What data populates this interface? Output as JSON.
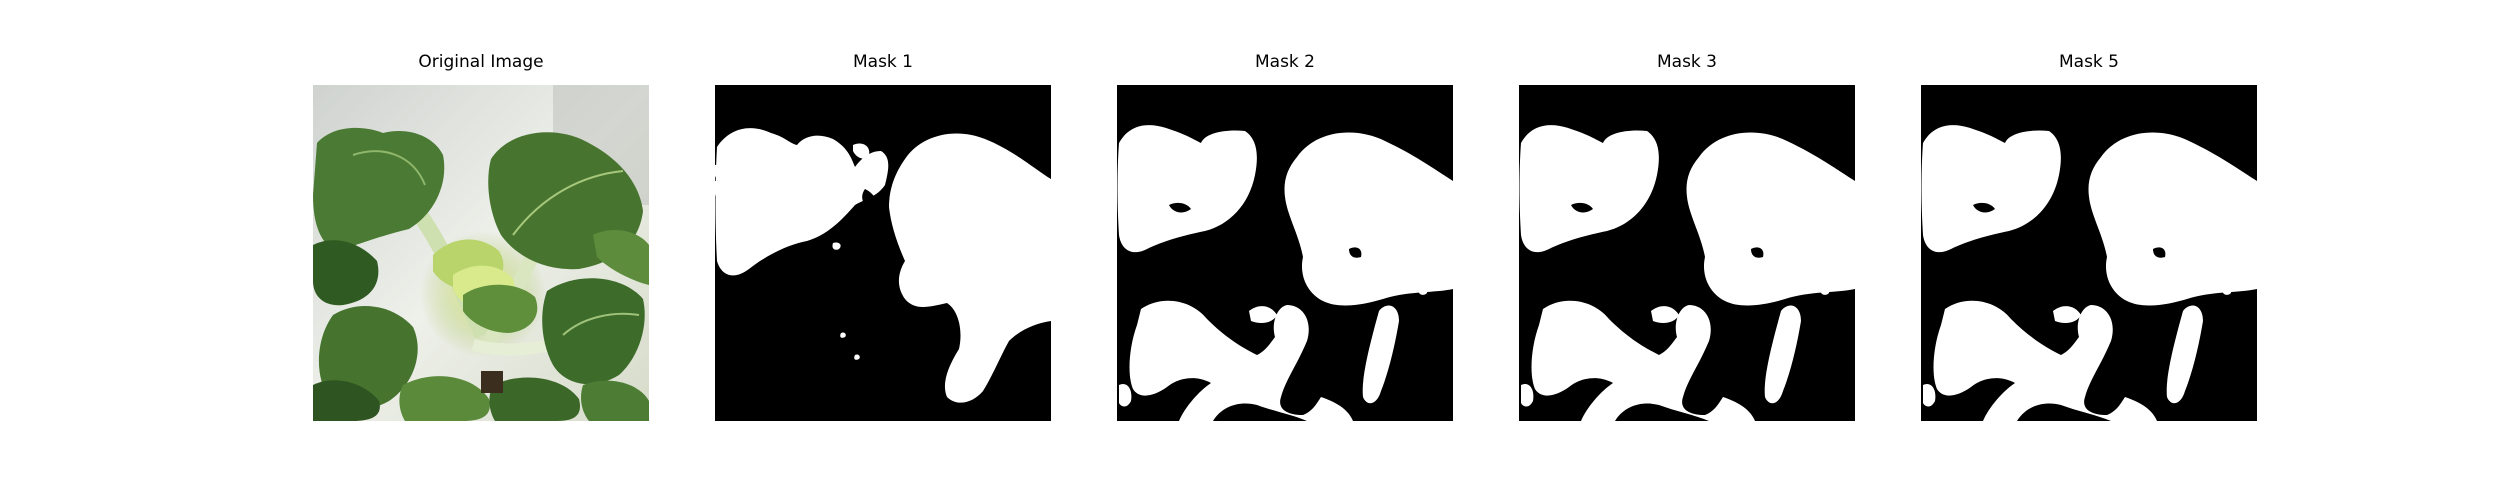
{
  "panels": [
    {
      "title": "Original Image"
    },
    {
      "title": "Mask 1"
    },
    {
      "title": "Mask 2"
    },
    {
      "title": "Mask 3"
    },
    {
      "title": "Mask 5"
    }
  ],
  "colors": {
    "mask_background": "#000000",
    "mask_foreground": "#ffffff",
    "leaf_dark": "#3f6a2c",
    "leaf_mid": "#6f9a4c",
    "leaf_light": "#c9d98a",
    "backdrop": "#dfe2df"
  }
}
